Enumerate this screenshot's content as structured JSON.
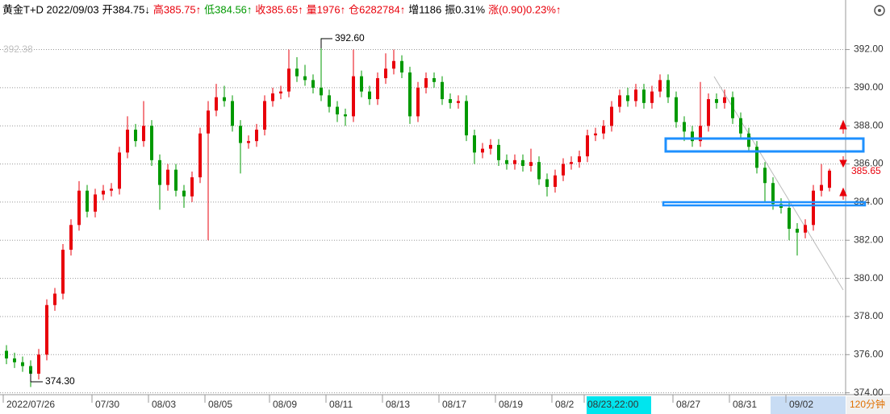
{
  "header": [
    {
      "text": "黄金T+D 2022/09/03",
      "color": "#000000"
    },
    {
      "text": "开384.75↓",
      "color": "#000000"
    },
    {
      "text": "高385.75↑",
      "color": "#e8000b"
    },
    {
      "text": "低384.56↑",
      "color": "#009900"
    },
    {
      "text": "收385.65↑",
      "color": "#e8000b"
    },
    {
      "text": "量1976↑",
      "color": "#e8000b"
    },
    {
      "text": "仓6282784↑",
      "color": "#e8000b"
    },
    {
      "text": "增1186",
      "color": "#000000"
    },
    {
      "text": "振0.31%",
      "color": "#000000"
    },
    {
      "text": "涨(0.90)0.23%↑",
      "color": "#e8000b"
    }
  ],
  "chart_data": {
    "type": "candlestick",
    "up_color": "#e8000b",
    "down_color": "#009900",
    "annotations": [
      "392.60",
      "374.30",
      "392.38"
    ],
    "period": "120分钟",
    "ylim": [
      373.9,
      394.6
    ],
    "yticks": [
      {
        "value": 374,
        "label": "374.00"
      },
      {
        "value": 376,
        "label": "376.00"
      },
      {
        "value": 378,
        "label": "378.00"
      },
      {
        "value": 380,
        "label": "380.00"
      },
      {
        "value": 382,
        "label": "382.00"
      },
      {
        "value": 384,
        "label": "384.00"
      },
      {
        "value": 386,
        "label": "386.00"
      },
      {
        "value": 388,
        "label": "388.00"
      },
      {
        "value": 390,
        "label": "390.00"
      },
      {
        "value": 392,
        "label": "392.00"
      }
    ],
    "grid": true,
    "categories": [
      "2022/07/26",
      null,
      null,
      null,
      null,
      null,
      null,
      null,
      null,
      null,
      null,
      "07/30",
      null,
      null,
      null,
      null,
      null,
      null,
      "08/03",
      null,
      null,
      null,
      null,
      null,
      null,
      "08/05",
      null,
      null,
      null,
      null,
      null,
      null,
      null,
      "08/09",
      null,
      null,
      null,
      null,
      null,
      null,
      "08/11",
      null,
      null,
      null,
      null,
      null,
      null,
      "08/13",
      null,
      null,
      null,
      null,
      null,
      null,
      "08/17",
      null,
      null,
      null,
      null,
      null,
      null,
      "08/19",
      null,
      null,
      null,
      null,
      null,
      null,
      "08/2",
      null,
      null,
      null,
      "08/23,22:00",
      null,
      null,
      null,
      null,
      null,
      null,
      null,
      null,
      null,
      null,
      "08/27",
      null,
      null,
      null,
      null,
      null,
      null,
      "08/31",
      null,
      null,
      null,
      null,
      null,
      null,
      "09/02",
      null,
      null,
      null,
      null,
      null
    ],
    "open": [
      376.2,
      375.8,
      375.6,
      375.4,
      375.0,
      376.0,
      378.6,
      379.2,
      381.5,
      382.8,
      384.6,
      383.5,
      384.4,
      384.6,
      384.7,
      386.6,
      387.8,
      387.2,
      388.0,
      386.2,
      384.9,
      385.7,
      384.6,
      384.3,
      385.3,
      387.6,
      388.8,
      389.5,
      389.3,
      388.0,
      387.1,
      387.2,
      387.8,
      389.3,
      389.7,
      389.8,
      391.0,
      390.6,
      390.4,
      390.0,
      389.6,
      389.0,
      388.6,
      388.5,
      390.6,
      389.8,
      389.4,
      390.5,
      391.0,
      391.4,
      390.8,
      388.5,
      390.0,
      390.5,
      390.3,
      389.4,
      389.2,
      389.3,
      387.5,
      386.6,
      386.8,
      387.0,
      386.2,
      386.0,
      386.2,
      385.9,
      386.1,
      385.2,
      384.8,
      385.4,
      386.0,
      386.1,
      386.4,
      387.5,
      387.6,
      388.0,
      389.0,
      389.6,
      389.3,
      389.9,
      389.2,
      389.8,
      390.4,
      389.5,
      388.2,
      387.7,
      387.2,
      388.0,
      389.4,
      389.2,
      389.5,
      388.4,
      387.6,
      386.9,
      385.8,
      385.0,
      383.9,
      383.7,
      382.6,
      382.4,
      382.8,
      384.6,
      384.75
    ],
    "high": [
      376.5,
      376.1,
      375.9,
      375.7,
      376.3,
      378.9,
      379.5,
      381.8,
      383.1,
      385.1,
      384.9,
      384.7,
      384.9,
      385.0,
      386.9,
      388.5,
      388.1,
      389.3,
      388.3,
      386.5,
      386.0,
      386.0,
      384.9,
      385.6,
      387.9,
      389.3,
      390.2,
      390.1,
      389.6,
      388.3,
      387.5,
      388.1,
      389.6,
      390.0,
      390.1,
      392.0,
      391.6,
      391.2,
      390.7,
      392.6,
      389.9,
      389.3,
      388.9,
      392.0,
      390.9,
      390.1,
      390.8,
      391.8,
      392.0,
      391.7,
      391.1,
      390.3,
      390.8,
      390.8,
      390.6,
      389.7,
      389.6,
      389.6,
      387.8,
      387.1,
      387.3,
      387.3,
      386.5,
      386.5,
      386.5,
      386.8,
      386.4,
      385.5,
      385.7,
      386.3,
      386.4,
      386.7,
      387.8,
      387.9,
      388.3,
      389.3,
      389.9,
      390.0,
      390.2,
      390.2,
      390.1,
      390.7,
      390.7,
      389.8,
      388.5,
      388.0,
      390.3,
      389.7,
      389.7,
      389.9,
      389.8,
      388.7,
      387.9,
      387.2,
      386.1,
      385.3,
      384.2,
      384.0,
      382.9,
      383.1,
      384.9,
      386.0,
      385.75
    ],
    "low": [
      375.5,
      375.3,
      375.1,
      374.3,
      374.7,
      375.7,
      378.3,
      378.9,
      381.2,
      382.5,
      383.2,
      383.2,
      384.1,
      384.3,
      384.4,
      386.3,
      386.9,
      386.9,
      385.9,
      383.6,
      384.6,
      384.3,
      383.7,
      384.0,
      385.0,
      382.0,
      388.5,
      389.0,
      387.7,
      385.5,
      386.8,
      386.9,
      387.5,
      389.0,
      389.4,
      389.5,
      390.3,
      390.1,
      389.7,
      389.3,
      388.7,
      388.2,
      388.0,
      388.2,
      389.5,
      389.1,
      389.1,
      390.2,
      390.7,
      390.5,
      388.1,
      388.2,
      389.7,
      390.0,
      389.1,
      388.9,
      388.9,
      387.2,
      386.0,
      386.3,
      386.5,
      385.9,
      385.7,
      385.7,
      385.6,
      385.6,
      384.9,
      384.3,
      384.5,
      385.1,
      385.7,
      385.8,
      386.1,
      387.2,
      387.3,
      387.7,
      388.7,
      389.0,
      389.0,
      388.9,
      388.9,
      389.5,
      389.2,
      387.9,
      387.2,
      386.9,
      386.9,
      387.7,
      388.9,
      388.9,
      388.1,
      387.3,
      386.6,
      385.5,
      384.0,
      383.6,
      383.4,
      382.0,
      381.2,
      382.1,
      382.5,
      384.3,
      384.56
    ],
    "close": [
      375.8,
      375.6,
      375.4,
      375.0,
      376.0,
      378.6,
      379.2,
      381.5,
      382.8,
      384.6,
      383.5,
      384.4,
      384.6,
      384.7,
      386.6,
      387.8,
      387.2,
      388.0,
      386.2,
      384.9,
      385.7,
      384.6,
      384.3,
      385.3,
      387.6,
      388.8,
      389.5,
      389.3,
      388.0,
      387.1,
      387.2,
      387.8,
      389.3,
      389.7,
      389.8,
      391.0,
      390.6,
      390.4,
      390.0,
      389.6,
      389.0,
      388.6,
      388.5,
      390.6,
      389.8,
      389.4,
      390.5,
      391.0,
      391.4,
      390.8,
      388.5,
      390.0,
      390.5,
      390.3,
      389.4,
      389.2,
      389.3,
      387.5,
      386.6,
      386.8,
      387.0,
      386.2,
      386.0,
      386.2,
      385.9,
      386.1,
      385.2,
      384.8,
      385.4,
      386.0,
      386.1,
      386.4,
      387.5,
      387.6,
      388.0,
      389.0,
      389.6,
      389.3,
      389.9,
      389.2,
      389.8,
      390.4,
      389.5,
      388.2,
      387.7,
      387.2,
      388.0,
      389.4,
      389.2,
      389.5,
      388.4,
      387.6,
      386.9,
      385.8,
      385.0,
      383.9,
      383.7,
      382.6,
      382.4,
      382.8,
      384.6,
      384.9,
      385.65
    ]
  }
}
